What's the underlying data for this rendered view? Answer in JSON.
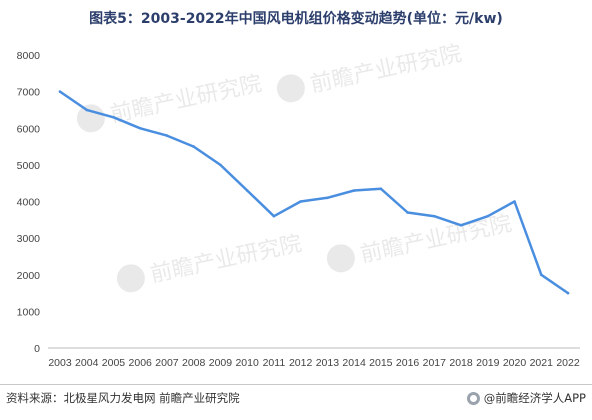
{
  "page": {
    "title": "图表5：2003-2022年中国风电机组价格变动趋势(单位：元/kw)",
    "source": "资料来源：北极星风力发电网 前瞻产业研究院",
    "brand": "@前瞻经济学人APP",
    "watermark": "前瞻产业研究院"
  },
  "chart_data": {
    "type": "line",
    "title": "图表5：2003-2022年中国风电机组价格变动趋势(单位：元/kw)",
    "xlabel": "",
    "ylabel": "",
    "categories": [
      "2003",
      "2004",
      "2005",
      "2006",
      "2007",
      "2008",
      "2009",
      "2010",
      "2011",
      "2012",
      "2013",
      "2014",
      "2015",
      "2016",
      "2017",
      "2018",
      "2019",
      "2020",
      "2021",
      "2022"
    ],
    "series": [
      {
        "values": [
          7000,
          6500,
          6300,
          6000,
          5800,
          5500,
          5000,
          4300,
          3600,
          4000,
          4100,
          4300,
          4350,
          3700,
          3600,
          3350,
          3600,
          4000,
          2000,
          1500
        ],
        "color": "#4a8ee0"
      }
    ],
    "ylim": [
      0,
      8000
    ],
    "yticks": [
      0,
      1000,
      2000,
      3000,
      4000,
      5000,
      6000,
      7000,
      8000
    ],
    "grid": false,
    "legend": "none",
    "axis_color": "#bbbbbb"
  }
}
